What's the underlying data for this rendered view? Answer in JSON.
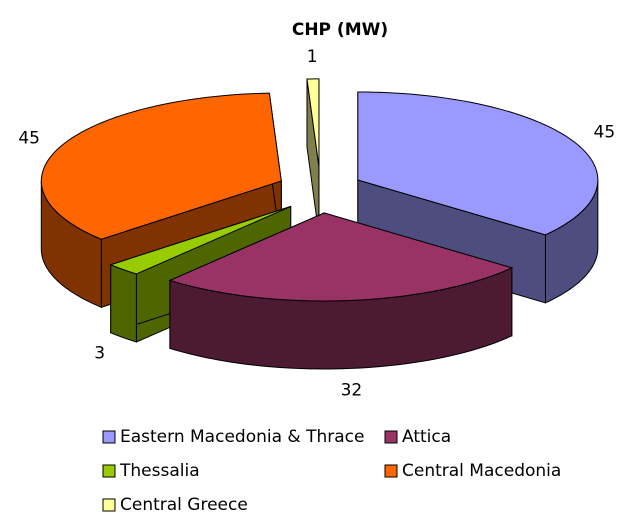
{
  "chart_data": {
    "type": "pie",
    "title": "CHP (MW)",
    "categories": [
      "Eastern Macedonia & Thrace",
      "Attica",
      "Thessalia",
      "Central Macedonia",
      "Central Greece"
    ],
    "values": [
      45,
      32,
      3,
      45,
      1
    ],
    "colors": [
      "#9999ff",
      "#993366",
      "#99cc00",
      "#ff6600",
      "#ffff99"
    ],
    "legend": "bottom"
  }
}
